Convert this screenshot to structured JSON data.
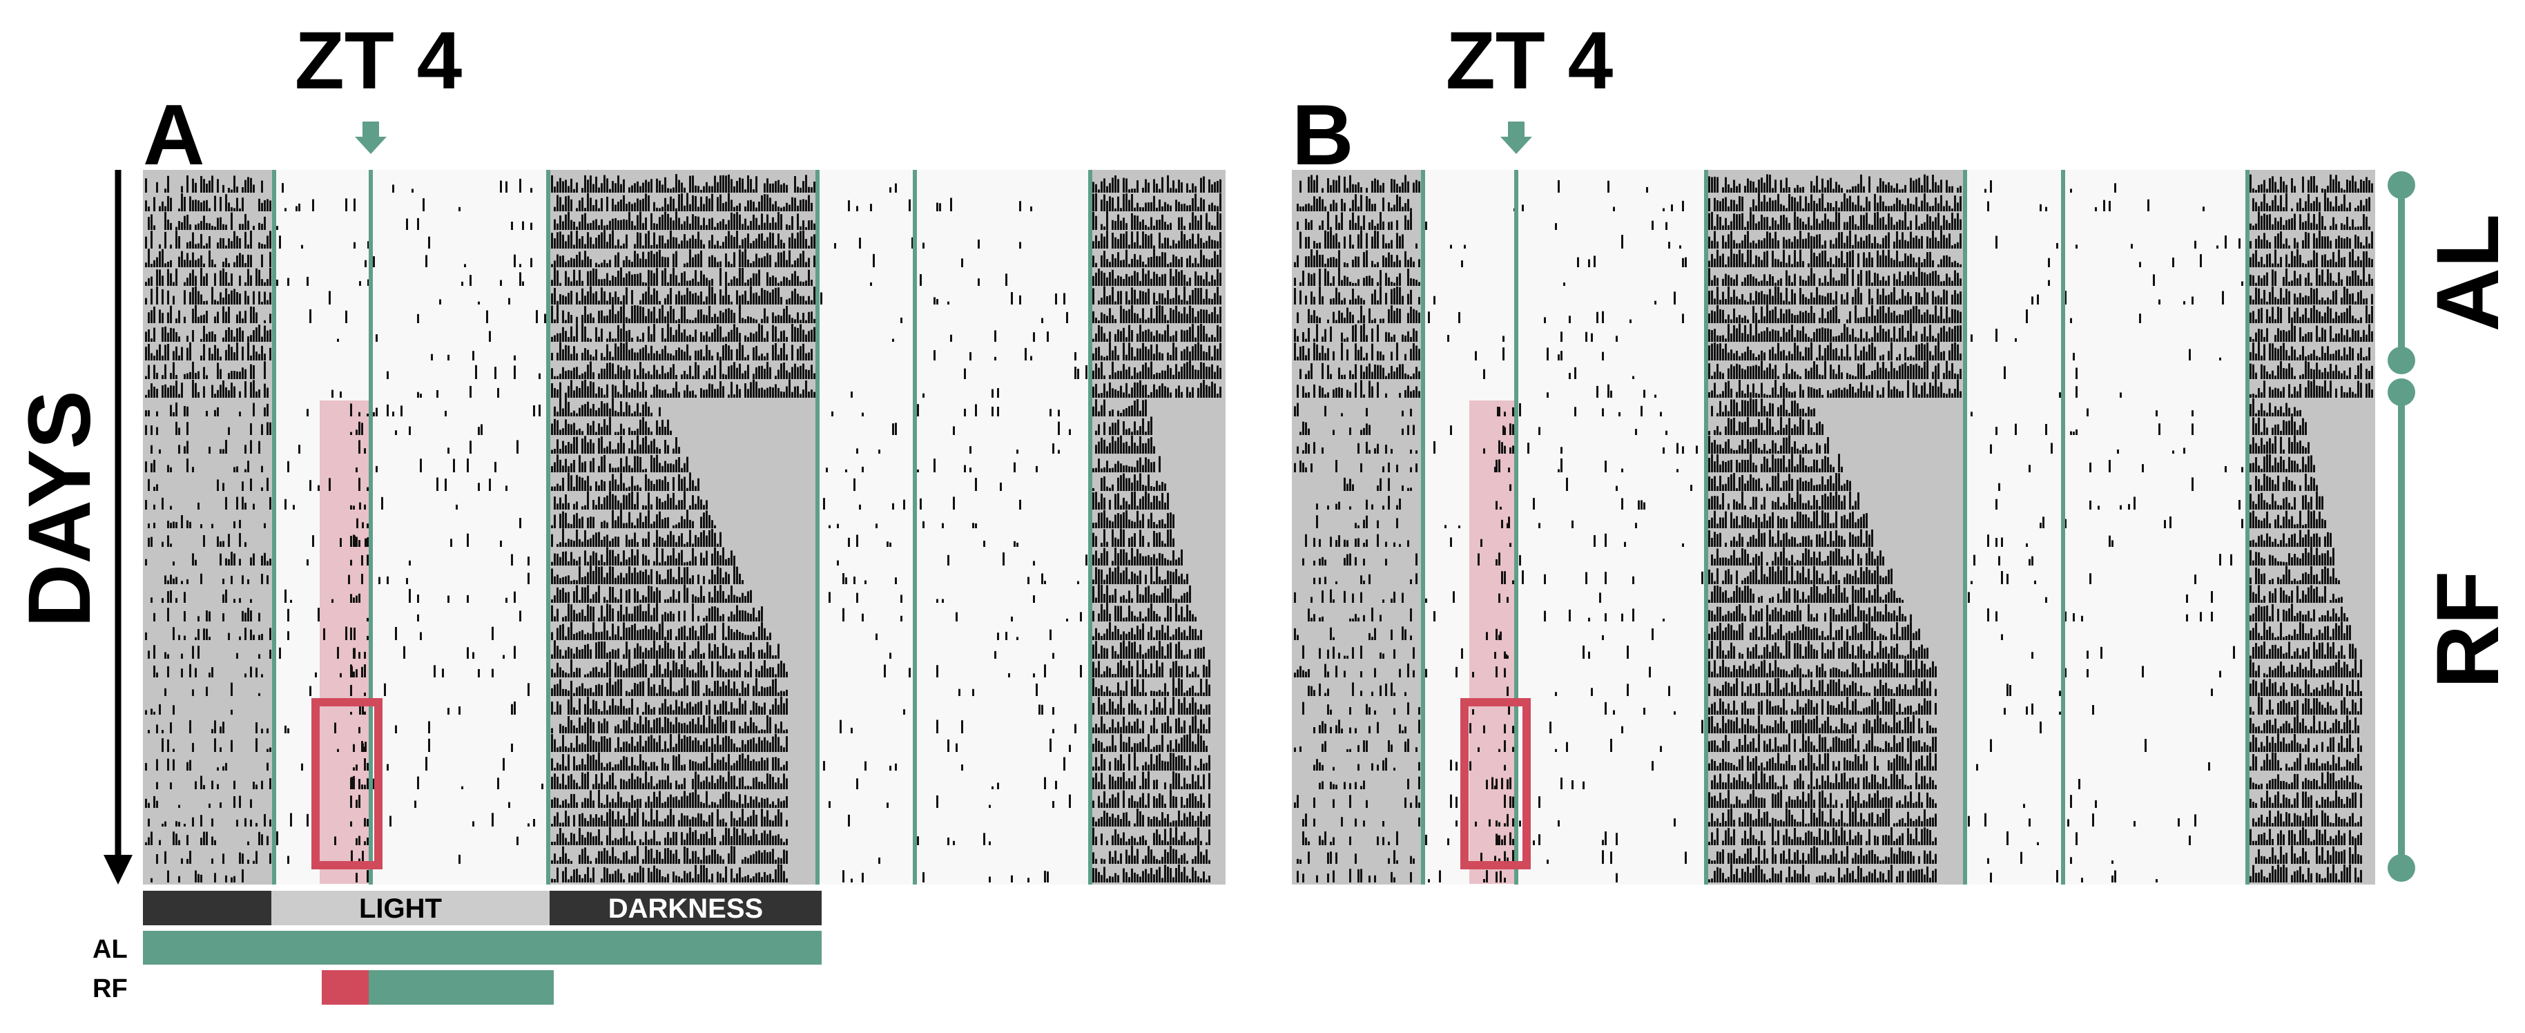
{
  "panel_a": {
    "letter": "A",
    "marker": "ZT 4"
  },
  "panel_b": {
    "letter": "B",
    "marker": "ZT 4"
  },
  "axis": {
    "label": "DAYS"
  },
  "bands": {
    "light": "LIGHT",
    "darkness": "DARKNESS"
  },
  "feeding": {
    "al": "AL",
    "rf": "RF"
  },
  "groups": {
    "al": "AL",
    "rf": "RF"
  },
  "colors": {
    "accent": "#5f9e88",
    "dark_shade": "#c4c4c4",
    "light_shade": "#f8f8f8",
    "restricted_window": "#e9c1c8",
    "restricted_box": "#d04a5c",
    "activity": "#111111",
    "band_dark": "#333333",
    "band_light": "#cccccc"
  },
  "icons": {
    "arrow": "down-arrow-icon",
    "marker": "down-pointer-icon"
  },
  "schedule": {
    "al_days": 12,
    "rf_days": 26
  }
}
